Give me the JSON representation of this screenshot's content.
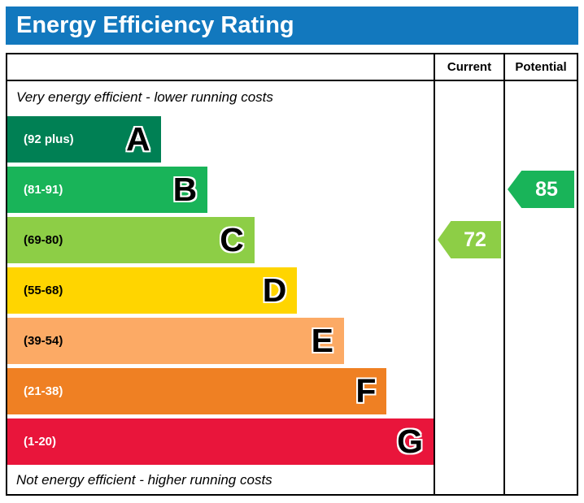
{
  "title": "Energy Efficiency Rating",
  "header": {
    "current": "Current",
    "potential": "Potential"
  },
  "notes": {
    "top": "Very energy efficient - lower running costs",
    "bottom": "Not energy efficient - higher running costs"
  },
  "colors": {
    "header_bar": "#1278be",
    "border": "#000000"
  },
  "bands": [
    {
      "letter": "A",
      "range": "(92 plus)",
      "color": "#008054",
      "width_pct": 36,
      "label_color": "#ffffff"
    },
    {
      "letter": "B",
      "range": "(81-91)",
      "color": "#19b459",
      "width_pct": 47,
      "label_color": "#ffffff"
    },
    {
      "letter": "C",
      "range": "(69-80)",
      "color": "#8dce46",
      "width_pct": 58,
      "label_color": "#000000"
    },
    {
      "letter": "D",
      "range": "(55-68)",
      "color": "#ffd500",
      "width_pct": 68,
      "label_color": "#000000"
    },
    {
      "letter": "E",
      "range": "(39-54)",
      "color": "#fcaa65",
      "width_pct": 79,
      "label_color": "#000000"
    },
    {
      "letter": "F",
      "range": "(21-38)",
      "color": "#ef8023",
      "width_pct": 89,
      "label_color": "#ffffff"
    },
    {
      "letter": "G",
      "range": "(1-20)",
      "color": "#e9153b",
      "width_pct": 100,
      "label_color": "#ffffff"
    }
  ],
  "current": {
    "value": "72",
    "band": "C",
    "color": "#8dce46"
  },
  "potential": {
    "value": "85",
    "band": "B",
    "color": "#19b459"
  },
  "chart_data": {
    "type": "bar",
    "title": "Energy Efficiency Rating",
    "categories": [
      "A",
      "B",
      "C",
      "D",
      "E",
      "F",
      "G"
    ],
    "band_ranges": [
      "(92 plus)",
      "(81-91)",
      "(69-80)",
      "(55-68)",
      "(39-54)",
      "(21-38)",
      "(1-20)"
    ],
    "band_colors": [
      "#008054",
      "#19b459",
      "#8dce46",
      "#ffd500",
      "#fcaa65",
      "#ef8023",
      "#e9153b"
    ],
    "relative_bar_widths_pct": [
      36,
      47,
      58,
      68,
      79,
      89,
      100
    ],
    "series": [
      {
        "name": "Current",
        "value": 72,
        "band": "C"
      },
      {
        "name": "Potential",
        "value": 85,
        "band": "B"
      }
    ],
    "annotations": [
      "Very energy efficient - lower running costs",
      "Not energy efficient - higher running costs"
    ],
    "legend_position": "none",
    "grid": false
  }
}
